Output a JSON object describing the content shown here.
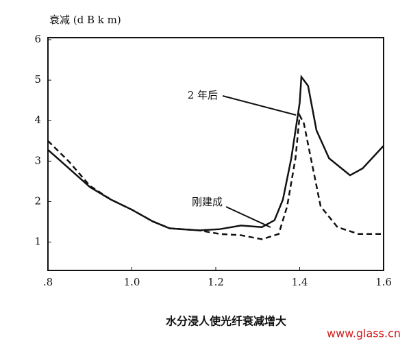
{
  "chart_data": {
    "type": "line",
    "y_axis_label": "衰减 (d B  k m)",
    "caption": "水分浸人使光纤衰减增大",
    "watermark": "www.glass.cn",
    "xlim": [
      0.8,
      1.6
    ],
    "xticks": [
      {
        "value": 0.8,
        "label": ".8"
      },
      {
        "value": 1.0,
        "label": "1.0"
      },
      {
        "value": 1.2,
        "label": "1.2"
      },
      {
        "value": 1.4,
        "label": "1.4"
      },
      {
        "value": 1.6,
        "label": "1.6"
      }
    ],
    "ylim": [
      0.3,
      6.05
    ],
    "yticks": [
      1,
      2,
      3,
      4,
      5,
      6
    ],
    "series": [
      {
        "name": "2 年后",
        "color": "#111111",
        "dash": false,
        "x": [
          0.8,
          0.85,
          0.9,
          0.95,
          1.0,
          1.05,
          1.09,
          1.16,
          1.21,
          1.26,
          1.31,
          1.34,
          1.36,
          1.38,
          1.4,
          1.404,
          1.42,
          1.44,
          1.47,
          1.52,
          1.55,
          1.6
        ],
        "values": [
          3.28,
          2.82,
          2.36,
          2.05,
          1.8,
          1.51,
          1.34,
          1.29,
          1.32,
          1.41,
          1.37,
          1.54,
          2.05,
          3.07,
          4.44,
          5.08,
          4.86,
          3.76,
          3.07,
          2.65,
          2.82,
          3.38
        ]
      },
      {
        "name": "刚建成",
        "color": "#111111",
        "dash": true,
        "x": [
          0.8,
          0.85,
          0.9,
          0.95,
          1.0,
          1.05,
          1.09,
          1.16,
          1.21,
          1.26,
          1.31,
          1.35,
          1.37,
          1.39,
          1.4,
          1.41,
          1.43,
          1.45,
          1.49,
          1.54,
          1.6
        ],
        "values": [
          3.5,
          2.99,
          2.39,
          2.05,
          1.8,
          1.51,
          1.34,
          1.29,
          1.2,
          1.17,
          1.07,
          1.2,
          1.88,
          3.07,
          4.13,
          3.93,
          2.9,
          1.88,
          1.37,
          1.2,
          1.2
        ]
      }
    ]
  }
}
